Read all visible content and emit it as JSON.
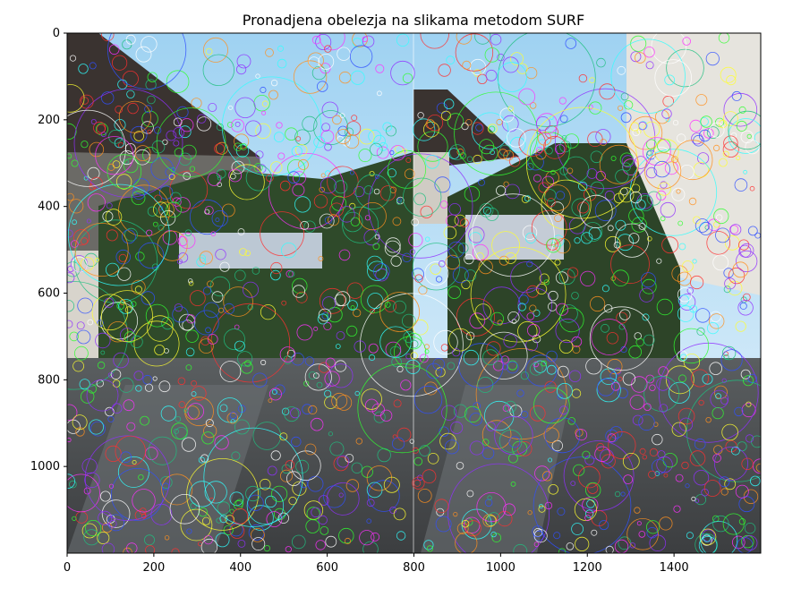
{
  "chart_data": {
    "type": "image",
    "title": "Pronadjena obelezja na slikama metodom SURF",
    "xlabel": "",
    "ylabel": "",
    "xlim": [
      0,
      1600
    ],
    "ylim": [
      1200,
      0
    ],
    "x_ticks": [
      0,
      200,
      400,
      600,
      800,
      1000,
      1200,
      1400
    ],
    "y_ticks": [
      0,
      200,
      400,
      600,
      800,
      1000
    ],
    "grid": false,
    "panels": [
      {
        "name": "left-photo",
        "x_range": [
          0,
          800
        ]
      },
      {
        "name": "right-photo",
        "x_range": [
          800,
          1600
        ]
      }
    ],
    "feature_marker": "circle",
    "feature_colors": [
      "#ff3030",
      "#30ff30",
      "#3050ff",
      "#ff30ff",
      "#30ffff",
      "#ffff30",
      "#ff9020",
      "#9030ff",
      "#20c080",
      "#ffffff"
    ]
  }
}
